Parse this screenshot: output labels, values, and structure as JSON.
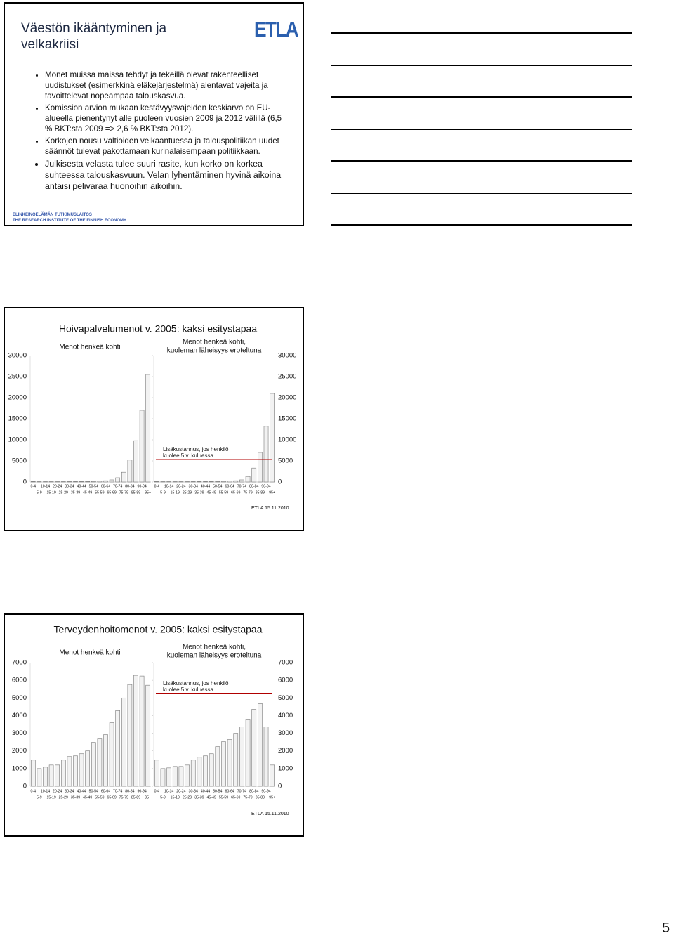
{
  "slides": [
    {
      "title": [
        "Väestön ikääntyminen ja",
        "velkakriisi"
      ],
      "logo": "ETLA",
      "bullets": [
        "Monet muissa maissa tehdyt ja tekeillä olevat rakenteelliset uudistukset (esimerkkinä eläkejärjestelmä) alentavat vajeita ja tavoittelevat nopeampaa talouskasvua.",
        "Komission arvion mukaan kestävyysvajeiden keskiarvo on EU-alueella pienentynyt alle puoleen vuosien 2009 ja 2012 välillä (6,5 % BKT:sta 2009 => 2,6 % BKT:sta 2012).",
        "Korkojen nousu valtioiden velkaantuessa ja talouspolitiikan uudet säännöt tulevat pakottamaan kurinalaisempaan politiikkaan.",
        "Julkisesta velasta tulee suuri rasite, kun korko on korkea suhteessa talouskasvuun. Velan lyhentäminen hyvinä aikoina antaisi pelivaraa huonoihin aikoihin."
      ],
      "footer": [
        "ELINKEINOELÄMÄN TUTKIMUSLAITOS",
        "THE RESEARCH INSTITUTE OF THE FINNISH ECONOMY"
      ]
    },
    {
      "title": "Hoivapalvelumenot v. 2005: kaksi esitystapaa",
      "categories": [
        "0-4",
        "5-9",
        "10-14",
        "15-19",
        "20-24",
        "25-29",
        "30-34",
        "35-39",
        "40-44",
        "45-49",
        "50-54",
        "55-59",
        "60-64",
        "65-69",
        "70-74",
        "75-79",
        "80-84",
        "85-89",
        "90-94",
        "95+"
      ],
      "ylim": [
        0,
        30000
      ],
      "yticks": [
        0,
        5000,
        10000,
        15000,
        20000,
        25000,
        30000
      ],
      "bar_color": "#f2f2f2",
      "panels": [
        {
          "type": "bar",
          "subtitle": [
            "Menot henkeä kohti"
          ],
          "values": [
            100,
            80,
            80,
            80,
            80,
            80,
            90,
            100,
            100,
            120,
            150,
            200,
            300,
            500,
            1000,
            2300,
            5200,
            9800,
            17000,
            25500
          ]
        },
        {
          "type": "bar",
          "subtitle": [
            "Menot henkeä kohti,",
            "kuoleman läheisyys eroteltuna"
          ],
          "values": [
            100,
            80,
            80,
            80,
            80,
            80,
            90,
            100,
            100,
            110,
            130,
            160,
            220,
            300,
            500,
            1300,
            3300,
            7000,
            13200,
            21000
          ],
          "annotation": [
            "Lisäkustannus, jos henkilö",
            "kuolee 5 v. kuluessa"
          ],
          "line_value": 5300,
          "line_color": "#b00000"
        }
      ],
      "date": "ETLA 15.11.2010"
    },
    {
      "title": "Terveydenhoitomenot v. 2005: kaksi esitystapaa",
      "categories": [
        "0-4",
        "5-9",
        "10-14",
        "15-19",
        "20-24",
        "25-29",
        "30-34",
        "35-39",
        "40-44",
        "45-49",
        "50-54",
        "55-59",
        "60-64",
        "65-69",
        "70-74",
        "75-79",
        "80-84",
        "85-89",
        "90-94",
        "95+"
      ],
      "ylim": [
        0,
        7000
      ],
      "yticks": [
        0,
        1000,
        2000,
        3000,
        4000,
        5000,
        6000,
        7000
      ],
      "bar_color": "#f2f2f2",
      "panels": [
        {
          "type": "bar",
          "subtitle": [
            "Menot henkeä kohti"
          ],
          "values": [
            1480,
            1000,
            1080,
            1200,
            1200,
            1480,
            1680,
            1720,
            1840,
            2000,
            2480,
            2680,
            2920,
            3600,
            4280,
            5000,
            5760,
            6280,
            6240,
            5720
          ]
        },
        {
          "type": "bar",
          "subtitle": [
            "Menot henkeä kohti,",
            "kuoleman läheisyys eroteltuna"
          ],
          "values": [
            1480,
            1000,
            1040,
            1120,
            1120,
            1200,
            1480,
            1640,
            1720,
            1840,
            2240,
            2520,
            2640,
            3000,
            3360,
            3760,
            4360,
            4680,
            3360,
            1200
          ],
          "annotation": [
            "Lisäkustannus, jos henkilö",
            "kuolee 5 v. kuluessa"
          ],
          "line_value": 5240,
          "line_color": "#b00000"
        }
      ],
      "date": "ETLA 15.11.2010"
    }
  ],
  "page_number": 5
}
